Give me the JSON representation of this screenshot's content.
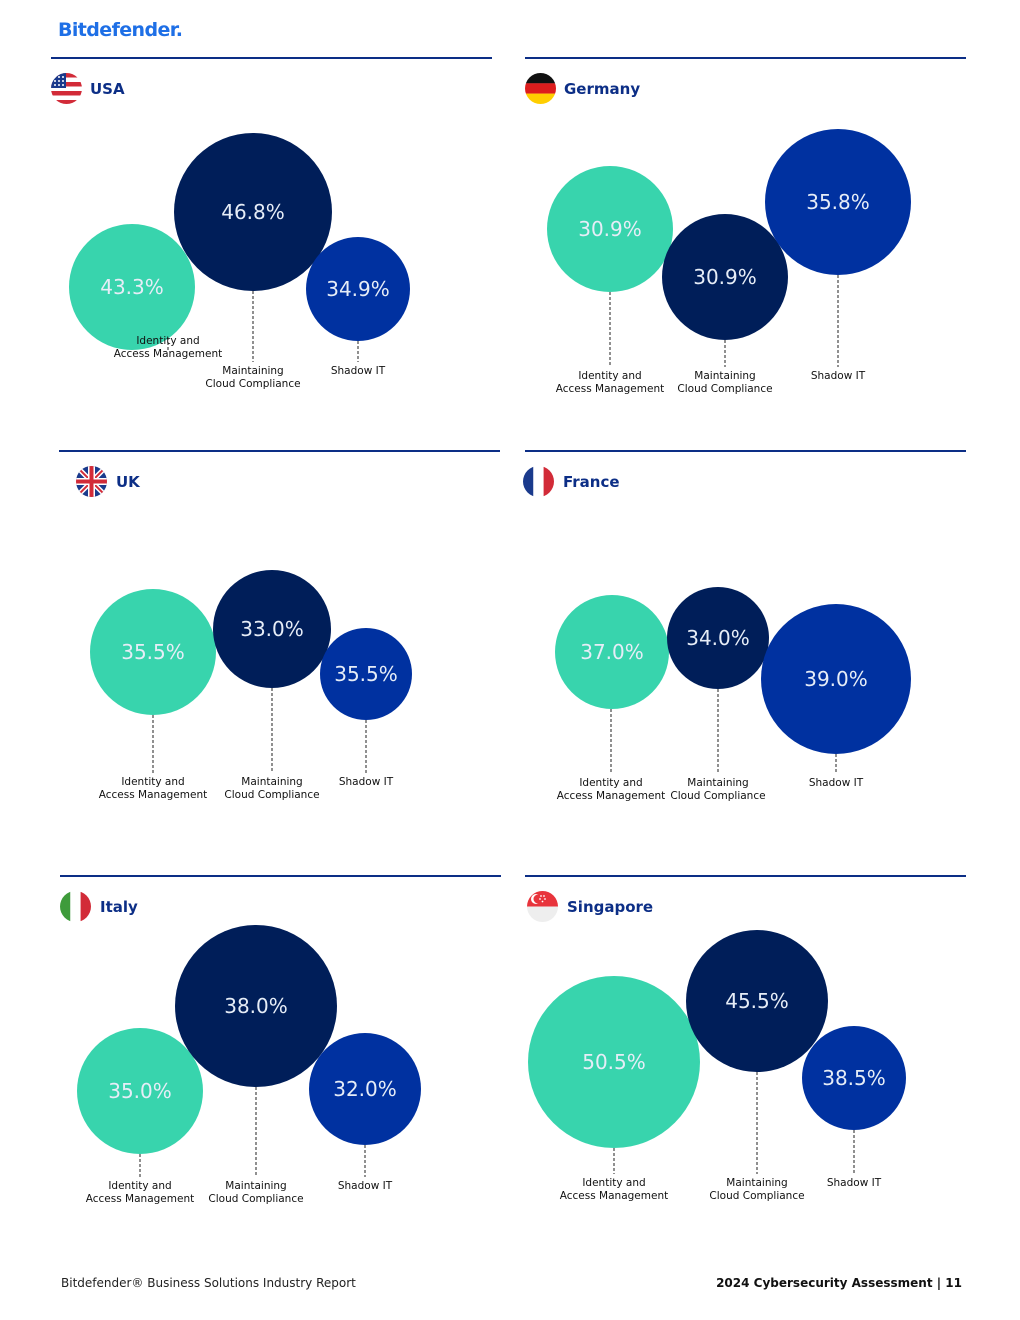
{
  "brand": "Bitdefender.",
  "footer": {
    "left": "Bitdefender® Business Solutions Industry Report",
    "right": "2024 Cybersecurity Assessment  |  11"
  },
  "colors": {
    "iam": "#38d4ad",
    "cloud": "#001e59",
    "shadow": "#0031a0",
    "rule": "#0c2e86"
  },
  "categories": [
    [
      "Identity and",
      "Access Management"
    ],
    [
      "Maintaining",
      "Cloud Compliance"
    ],
    [
      "Shadow IT"
    ]
  ],
  "chart_data": [
    {
      "type": "bubble",
      "title": "USA",
      "flag": "usa-flag",
      "categories": [
        "Identity and Access Management",
        "Maintaining Cloud Compliance",
        "Shadow IT"
      ],
      "values": [
        43.3,
        46.8,
        34.9
      ],
      "labels": [
        "43.3%",
        "46.8%",
        "34.9%"
      ]
    },
    {
      "type": "bubble",
      "title": "Germany",
      "flag": "germany-flag",
      "categories": [
        "Identity and Access Management",
        "Maintaining Cloud Compliance",
        "Shadow IT"
      ],
      "values": [
        30.9,
        30.9,
        35.8
      ],
      "labels": [
        "30.9%",
        "30.9%",
        "35.8%"
      ]
    },
    {
      "type": "bubble",
      "title": "UK",
      "flag": "uk-flag",
      "categories": [
        "Identity and Access Management",
        "Maintaining Cloud Compliance",
        "Shadow IT"
      ],
      "values": [
        35.5,
        33.0,
        35.5
      ],
      "labels": [
        "35.5%",
        "33.0%",
        "35.5%"
      ]
    },
    {
      "type": "bubble",
      "title": "France",
      "flag": "france-flag",
      "categories": [
        "Identity and Access Management",
        "Maintaining Cloud Compliance",
        "Shadow IT"
      ],
      "values": [
        37.0,
        34.0,
        39.0
      ],
      "labels": [
        "37.0%",
        "34.0%",
        "39.0%"
      ]
    },
    {
      "type": "bubble",
      "title": "Italy",
      "flag": "italy-flag",
      "categories": [
        "Identity and Access Management",
        "Maintaining Cloud Compliance",
        "Shadow IT"
      ],
      "values": [
        35.0,
        38.0,
        32.0
      ],
      "labels": [
        "35.0%",
        "38.0%",
        "32.0%"
      ]
    },
    {
      "type": "bubble",
      "title": "Singapore",
      "flag": "singapore-flag",
      "categories": [
        "Identity and Access Management",
        "Maintaining Cloud Compliance",
        "Shadow IT"
      ],
      "values": [
        50.5,
        45.5,
        38.5
      ],
      "labels": [
        "50.5%",
        "45.5%",
        "38.5%"
      ]
    }
  ]
}
